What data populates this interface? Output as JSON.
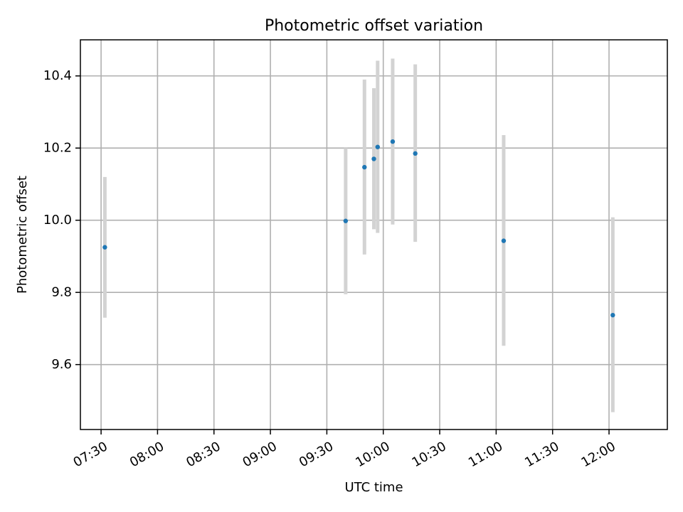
{
  "chart_data": {
    "type": "scatter",
    "title": "Photometric offset variation",
    "xlabel": "UTC time",
    "ylabel": "Photometric offset",
    "x_axis": {
      "type": "time",
      "range": [
        "07:19",
        "12:31"
      ],
      "ticks": [
        "07:30",
        "08:00",
        "08:30",
        "09:00",
        "09:30",
        "10:00",
        "10:30",
        "11:00",
        "11:30",
        "12:00"
      ]
    },
    "y_axis": {
      "range": [
        9.42,
        10.5
      ],
      "ticks": [
        9.6,
        9.8,
        10.0,
        10.2,
        10.4
      ],
      "tick_labels": [
        "9.6",
        "9.8",
        "10.0",
        "10.2",
        "10.4"
      ]
    },
    "grid": true,
    "legend": "none",
    "series": [
      {
        "color": "#1f77b4",
        "error_bar_color": "#d3d3d3",
        "points": [
          {
            "x": "07:32",
            "y": 9.925,
            "ylow": 9.73,
            "yhigh": 10.12
          },
          {
            "x": "09:40",
            "y": 9.998,
            "ylow": 9.795,
            "yhigh": 10.2
          },
          {
            "x": "09:50",
            "y": 10.147,
            "ylow": 9.905,
            "yhigh": 10.39
          },
          {
            "x": "09:55",
            "y": 10.17,
            "ylow": 9.975,
            "yhigh": 10.366
          },
          {
            "x": "09:57",
            "y": 10.203,
            "ylow": 9.965,
            "yhigh": 10.442
          },
          {
            "x": "10:05",
            "y": 10.218,
            "ylow": 9.988,
            "yhigh": 10.448
          },
          {
            "x": "10:17",
            "y": 10.185,
            "ylow": 9.94,
            "yhigh": 10.432
          },
          {
            "x": "11:04",
            "y": 9.943,
            "ylow": 9.652,
            "yhigh": 10.236
          },
          {
            "x": "12:02",
            "y": 9.737,
            "ylow": 9.468,
            "yhigh": 10.008
          }
        ]
      }
    ]
  }
}
